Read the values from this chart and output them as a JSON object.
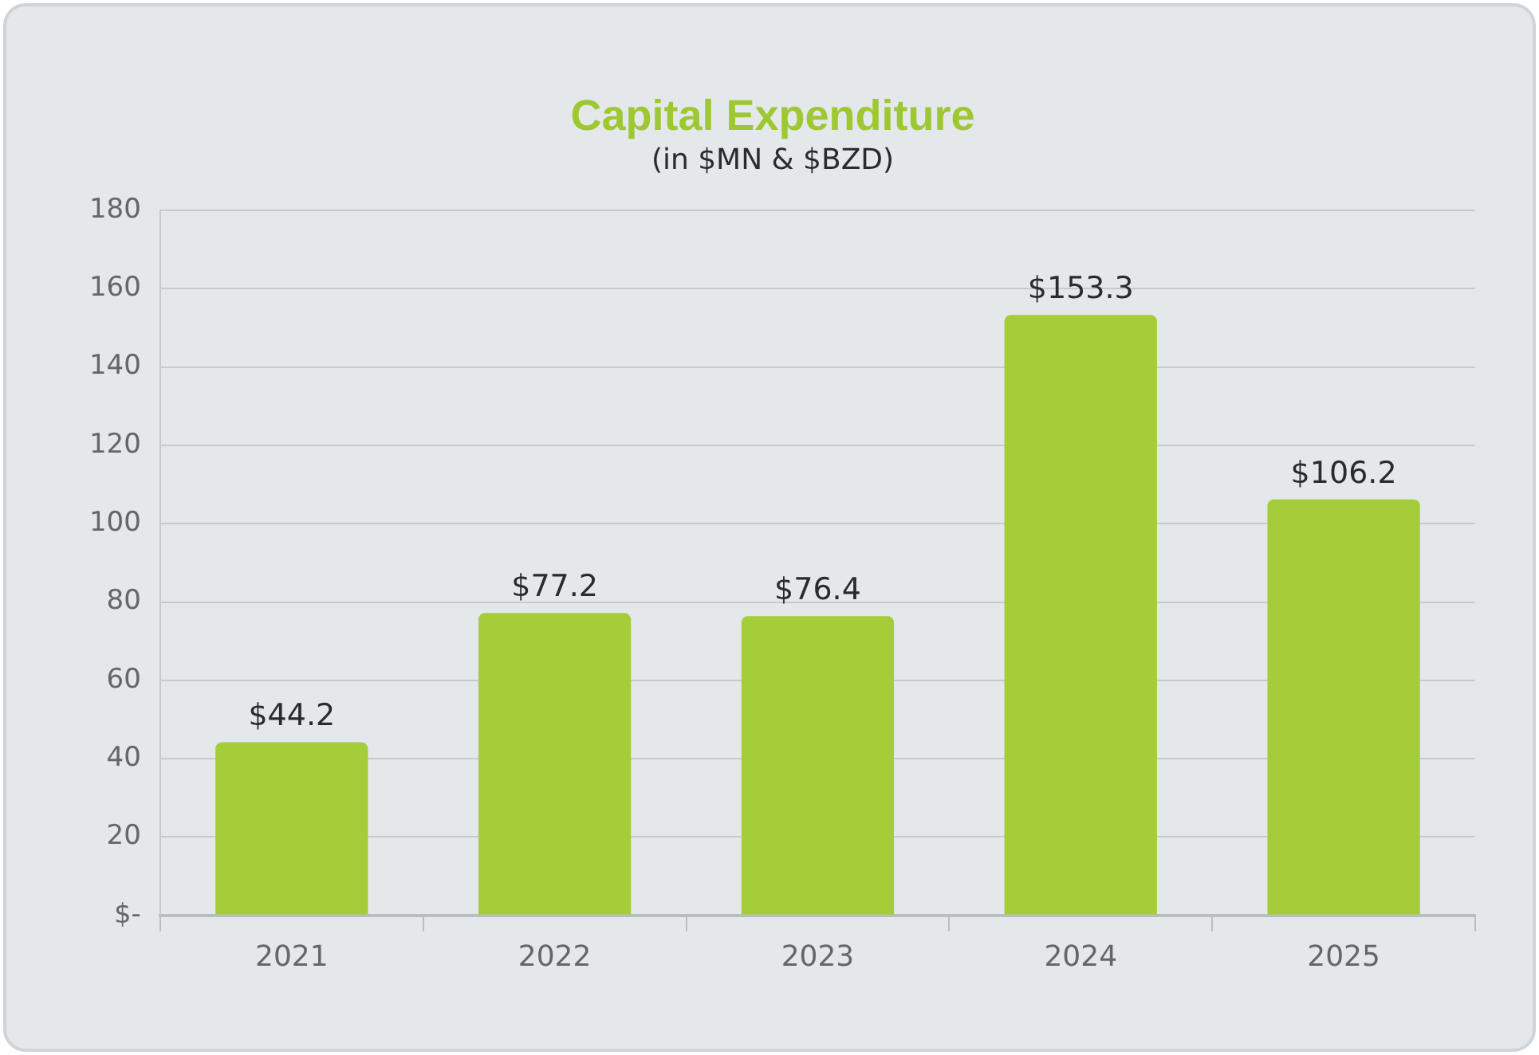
{
  "chart_data": {
    "type": "bar",
    "title": "Capital Expenditure",
    "subtitle": "(in $MN & $BZD)",
    "categories": [
      "2021",
      "2022",
      "2023",
      "2024",
      "2025"
    ],
    "values": [
      44.2,
      77.2,
      76.4,
      153.3,
      106.2
    ],
    "value_labels": [
      "$44.2",
      "$77.2",
      "$76.4",
      "$153.3",
      "$106.2"
    ],
    "color": "#a5cd39",
    "ylim": [
      0,
      180
    ],
    "yticks": [
      {
        "value": 0,
        "label": "$-"
      },
      20,
      40,
      60,
      80,
      100,
      120,
      140,
      160,
      180
    ],
    "grid": "y",
    "legend": false
  }
}
